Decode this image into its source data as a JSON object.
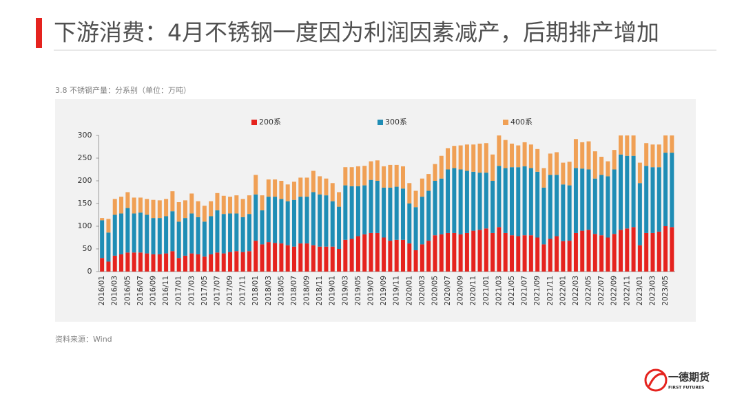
{
  "header": {
    "title": "下游消费：4月不锈钢一度因为利润因素减产，后期排产增加"
  },
  "chart_data": {
    "type": "stacked_bar",
    "subtitle": "3.8 不锈钢产量：分系别（单位：万吨）",
    "source": "资料来源：Wind",
    "categories": [
      "2016/01",
      null,
      "2016/03",
      null,
      "2016/05",
      null,
      "2016/07",
      null,
      "2016/09",
      null,
      "2016/11",
      null,
      "2017/01",
      null,
      "2017/03",
      null,
      "2017/05",
      null,
      "2017/07",
      null,
      "2017/09",
      null,
      "2017/11",
      null,
      "2018/01",
      null,
      "2018/03",
      null,
      "2018/05",
      null,
      "2018/07",
      null,
      "2018/09",
      null,
      "2018/11",
      null,
      "2019/01",
      null,
      "2019/03",
      null,
      "2019/05",
      null,
      "2019/07",
      null,
      "2019/09",
      null,
      "2019/11",
      null,
      "2020/01",
      null,
      "2020/03",
      null,
      "2020/05",
      null,
      "2020/07",
      null,
      "2020/09",
      null,
      "2020/11",
      null,
      "2021/01",
      null,
      "2021/03",
      null,
      "2021/05",
      null,
      "2021/07",
      null,
      "2021/09",
      null,
      "2021/11",
      null,
      "2022/01",
      null,
      "2022/03",
      null,
      "2022/05",
      null,
      "2022/07",
      null,
      "2022/09",
      null,
      "2022/11",
      null,
      "2023/01",
      null,
      "2023/03",
      null,
      "2023/05",
      null
    ],
    "series": [
      {
        "name": "200系",
        "color": "#e5231e",
        "values": [
          30,
          22,
          35,
          38,
          42,
          42,
          42,
          40,
          38,
          38,
          40,
          45,
          30,
          35,
          40,
          38,
          33,
          38,
          42,
          40,
          43,
          45,
          43,
          45,
          68,
          60,
          65,
          63,
          62,
          58,
          55,
          62,
          62,
          58,
          55,
          55,
          55,
          50,
          70,
          72,
          78,
          82,
          85,
          85,
          75,
          68,
          70,
          70,
          62,
          47,
          60,
          68,
          80,
          82,
          85,
          85,
          82,
          85,
          90,
          92,
          95,
          85,
          98,
          85,
          80,
          78,
          80,
          80,
          75,
          60,
          72,
          78,
          67,
          68,
          85,
          90,
          92,
          83,
          80,
          75,
          83,
          92,
          95,
          98,
          58,
          85,
          85,
          88,
          100,
          98
        ]
      },
      {
        "name": "300系",
        "color": "#1f8db5",
        "values": [
          83,
          64,
          90,
          90,
          98,
          86,
          88,
          85,
          80,
          80,
          82,
          88,
          80,
          83,
          88,
          82,
          77,
          84,
          93,
          87,
          85,
          83,
          77,
          82,
          102,
          75,
          100,
          102,
          98,
          97,
          103,
          103,
          103,
          117,
          115,
          113,
          100,
          93,
          120,
          116,
          110,
          108,
          117,
          115,
          110,
          117,
          117,
          113,
          88,
          95,
          105,
          110,
          120,
          123,
          140,
          143,
          143,
          137,
          130,
          126,
          123,
          115,
          135,
          143,
          150,
          152,
          152,
          148,
          145,
          125,
          141,
          135,
          125,
          122,
          143,
          137,
          133,
          122,
          133,
          135,
          142,
          166,
          160,
          157,
          137,
          148,
          145,
          142,
          162,
          164
        ]
      },
      {
        "name": "400系",
        "color": "#f0a055",
        "values": [
          5,
          30,
          35,
          37,
          35,
          35,
          33,
          35,
          40,
          39,
          38,
          44,
          43,
          39,
          44,
          35,
          35,
          33,
          38,
          40,
          37,
          40,
          40,
          41,
          43,
          33,
          38,
          38,
          40,
          37,
          40,
          42,
          42,
          47,
          40,
          37,
          40,
          32,
          40,
          42,
          44,
          43,
          41,
          45,
          47,
          50,
          48,
          49,
          45,
          36,
          40,
          37,
          37,
          50,
          47,
          49,
          53,
          58,
          60,
          64,
          65,
          58,
          67,
          62,
          52,
          48,
          53,
          52,
          50,
          43,
          47,
          50,
          48,
          52,
          64,
          58,
          62,
          60,
          40,
          33,
          43,
          42,
          45,
          45,
          45,
          50,
          50,
          50,
          38,
          38
        ]
      }
    ],
    "ylim": [
      0,
      300
    ],
    "yticks": [
      0,
      50,
      100,
      150,
      200,
      250,
      300
    ],
    "legend": "top"
  },
  "logo": {
    "name": "一德期货",
    "name_en": "FIRST FUTURES"
  }
}
